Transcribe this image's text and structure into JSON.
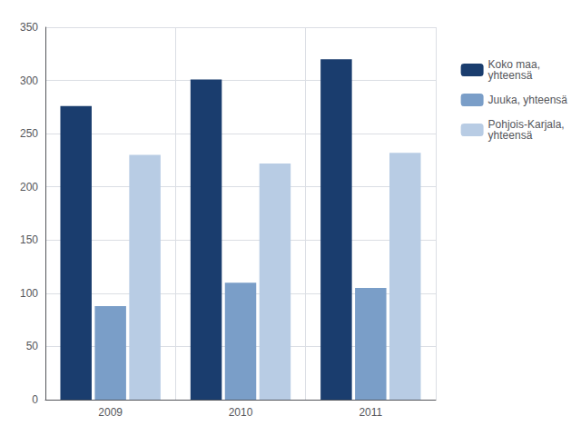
{
  "chart_data": {
    "type": "bar",
    "categories": [
      "2009",
      "2010",
      "2011"
    ],
    "series": [
      {
        "name": "Koko maa,\nyhteensä",
        "color": "#1a3d6e",
        "values": [
          276,
          301,
          320
        ]
      },
      {
        "name": "Juuka, yhteensä",
        "color": "#7a9ec8",
        "values": [
          88,
          110,
          105
        ]
      },
      {
        "name": "Pohjois-Karjala,\nyhteensä",
        "color": "#b8cce4",
        "values": [
          230,
          222,
          232
        ]
      }
    ],
    "ylim": [
      0,
      350
    ],
    "yticks": [
      0,
      50,
      100,
      150,
      200,
      250,
      300,
      350
    ],
    "grid": true,
    "legend": "right"
  }
}
